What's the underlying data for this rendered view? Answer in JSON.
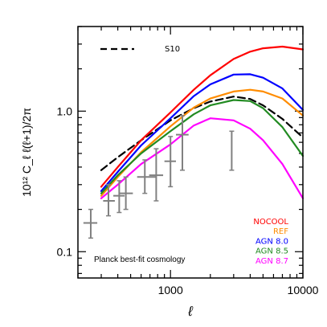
{
  "chart_data": {
    "type": "line",
    "xlabel": "ℓ",
    "ylabel": "10¹² C_ℓ ℓ(ℓ+1)/2π",
    "xscale": "log",
    "yscale": "log",
    "xlim": [
      200,
      10000
    ],
    "ylim": [
      0.065,
      4.0
    ],
    "xticks": [
      {
        "value": 1000,
        "label": "1000"
      },
      {
        "value": 10000,
        "label": "10000"
      }
    ],
    "yticks": [
      {
        "value": 0.1,
        "label": "0.1"
      },
      {
        "value": 1.0,
        "label": "1.0"
      }
    ],
    "annotation": "Planck best-fit cosmology",
    "legend_placement": "bottom-right",
    "reference_curve": {
      "name": "S10",
      "color": "#000000",
      "dash": true,
      "points": [
        [
          300,
          0.38
        ],
        [
          400,
          0.47
        ],
        [
          600,
          0.62
        ],
        [
          1000,
          0.86
        ],
        [
          1500,
          1.05
        ],
        [
          2000,
          1.17
        ],
        [
          3000,
          1.27
        ],
        [
          4000,
          1.22
        ],
        [
          5000,
          1.1
        ],
        [
          7000,
          0.88
        ],
        [
          10000,
          0.65
        ]
      ]
    },
    "series": [
      {
        "name": "NOCOOL",
        "color": "#ff0000",
        "points": [
          [
            300,
            0.29
          ],
          [
            400,
            0.4
          ],
          [
            600,
            0.62
          ],
          [
            1000,
            0.98
          ],
          [
            1500,
            1.42
          ],
          [
            2000,
            1.8
          ],
          [
            3000,
            2.35
          ],
          [
            4000,
            2.65
          ],
          [
            5000,
            2.8
          ],
          [
            7000,
            2.88
          ],
          [
            10000,
            2.75
          ]
        ]
      },
      {
        "name": "REF",
        "color": "#ff8c00",
        "points": [
          [
            300,
            0.25
          ],
          [
            400,
            0.34
          ],
          [
            600,
            0.51
          ],
          [
            1000,
            0.78
          ],
          [
            1500,
            1.06
          ],
          [
            2000,
            1.23
          ],
          [
            3000,
            1.38
          ],
          [
            4000,
            1.42
          ],
          [
            5000,
            1.38
          ],
          [
            7000,
            1.23
          ],
          [
            10000,
            0.93
          ]
        ]
      },
      {
        "name": "AGN 8.0",
        "color": "#0000ff",
        "points": [
          [
            300,
            0.27
          ],
          [
            400,
            0.37
          ],
          [
            600,
            0.57
          ],
          [
            1000,
            0.89
          ],
          [
            1500,
            1.28
          ],
          [
            2000,
            1.55
          ],
          [
            3000,
            1.82
          ],
          [
            4000,
            1.83
          ],
          [
            5000,
            1.73
          ],
          [
            7000,
            1.45
          ],
          [
            10000,
            1.02
          ]
        ]
      },
      {
        "name": "AGN 8.5",
        "color": "#228b22",
        "points": [
          [
            300,
            0.26
          ],
          [
            400,
            0.35
          ],
          [
            600,
            0.5
          ],
          [
            1000,
            0.72
          ],
          [
            1500,
            0.95
          ],
          [
            2000,
            1.1
          ],
          [
            3000,
            1.2
          ],
          [
            4000,
            1.18
          ],
          [
            5000,
            1.05
          ],
          [
            7000,
            0.77
          ],
          [
            10000,
            0.48
          ]
        ]
      },
      {
        "name": "AGN 8.7",
        "color": "#ff00ff",
        "points": [
          [
            300,
            0.24
          ],
          [
            400,
            0.3
          ],
          [
            600,
            0.42
          ],
          [
            1000,
            0.58
          ],
          [
            1500,
            0.79
          ],
          [
            2000,
            0.89
          ],
          [
            3000,
            0.86
          ],
          [
            4000,
            0.75
          ],
          [
            5000,
            0.62
          ],
          [
            7000,
            0.42
          ],
          [
            10000,
            0.24
          ]
        ]
      }
    ],
    "data_points": {
      "color": "#808080",
      "points": [
        {
          "x": 250,
          "y": 0.16,
          "xerr": [
            220,
            280
          ],
          "yerr": [
            0.125,
            0.2
          ]
        },
        {
          "x": 340,
          "y": 0.23,
          "xerr": [
            310,
            380
          ],
          "yerr": [
            0.18,
            0.3
          ]
        },
        {
          "x": 410,
          "y": 0.25,
          "xerr": [
            370,
            450
          ],
          "yerr": [
            0.19,
            0.32
          ]
        },
        {
          "x": 460,
          "y": 0.26,
          "xerr": [
            410,
            520
          ],
          "yerr": [
            0.2,
            0.34
          ]
        },
        {
          "x": 640,
          "y": 0.34,
          "xerr": [
            560,
            770
          ],
          "yerr": [
            0.26,
            0.45
          ]
        },
        {
          "x": 780,
          "y": 0.35,
          "xerr": [
            690,
            880
          ],
          "yerr": [
            0.23,
            0.54
          ]
        },
        {
          "x": 1000,
          "y": 0.44,
          "xerr": [
            900,
            1100
          ],
          "yerr": [
            0.29,
            0.66
          ]
        },
        {
          "x": 1230,
          "y": 0.68,
          "xerr": [
            1100,
            1370
          ],
          "yerr": [
            0.38,
            0.93
          ]
        },
        {
          "x": 2900,
          "y": 0.51,
          "xerr": [
            2900,
            2900
          ],
          "yerr": [
            0.38,
            0.72
          ]
        }
      ]
    }
  }
}
